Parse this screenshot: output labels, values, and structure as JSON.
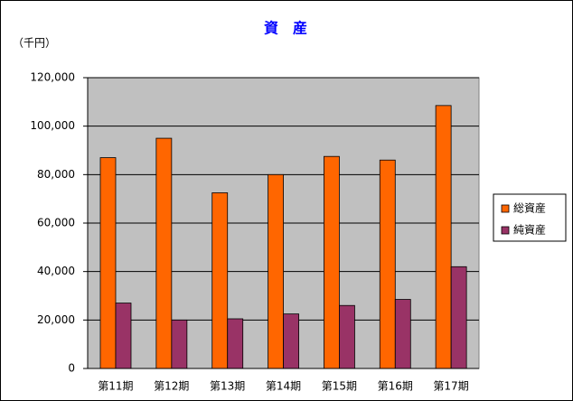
{
  "chart_data": {
    "type": "bar",
    "title": "資　産",
    "y_unit": "（千円）",
    "categories": [
      "第11期",
      "第12期",
      "第13期",
      "第14期",
      "第15期",
      "第16期",
      "第17期"
    ],
    "series": [
      {
        "name": "総資産",
        "color": "#ff6600",
        "values": [
          87000,
          95000,
          72500,
          80000,
          87500,
          86000,
          108500
        ]
      },
      {
        "name": "純資産",
        "color": "#993366",
        "values": [
          27000,
          20000,
          20500,
          22500,
          26000,
          28500,
          42000
        ]
      }
    ],
    "ylim": [
      0,
      120000
    ],
    "yticks": [
      0,
      {
        "value": 20000,
        "label": "20,000"
      },
      {
        "value": 40000,
        "label": "40,000"
      },
      {
        "value": 60000,
        "label": "60,000"
      },
      {
        "value": 80000,
        "label": "80,000"
      },
      {
        "value": 100000,
        "label": "100,000"
      },
      {
        "value": 120000,
        "label": "120,000"
      }
    ],
    "grid": true,
    "plot_background": "#c0c0c0",
    "legend": "right"
  }
}
